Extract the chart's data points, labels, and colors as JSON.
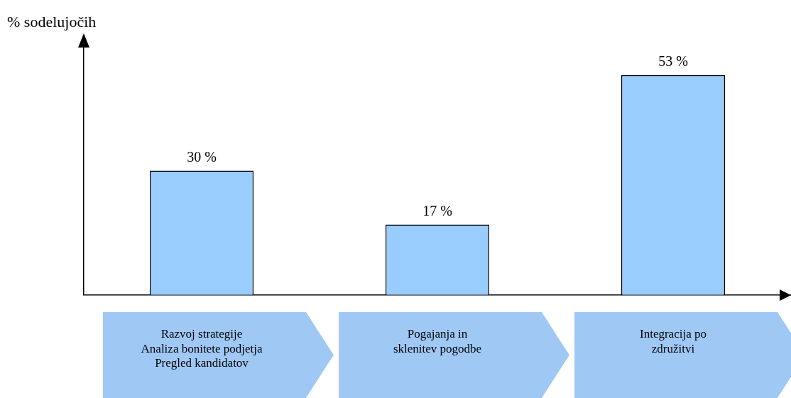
{
  "chart_data": {
    "type": "bar",
    "ylabel": "% sodelujočih",
    "categories": [
      "Razvoj strategije\nAnaliza bonitete podjetja\nPregled kandidatov",
      "Pogajanja in\nsklenitev pogodbe",
      "Integracija po\nzdružitvi"
    ],
    "values": [
      30,
      17,
      53
    ],
    "color": "#99ccff",
    "value_labels": [
      "30 %",
      "17 %",
      "53 %"
    ],
    "grid": false,
    "legend": false
  }
}
